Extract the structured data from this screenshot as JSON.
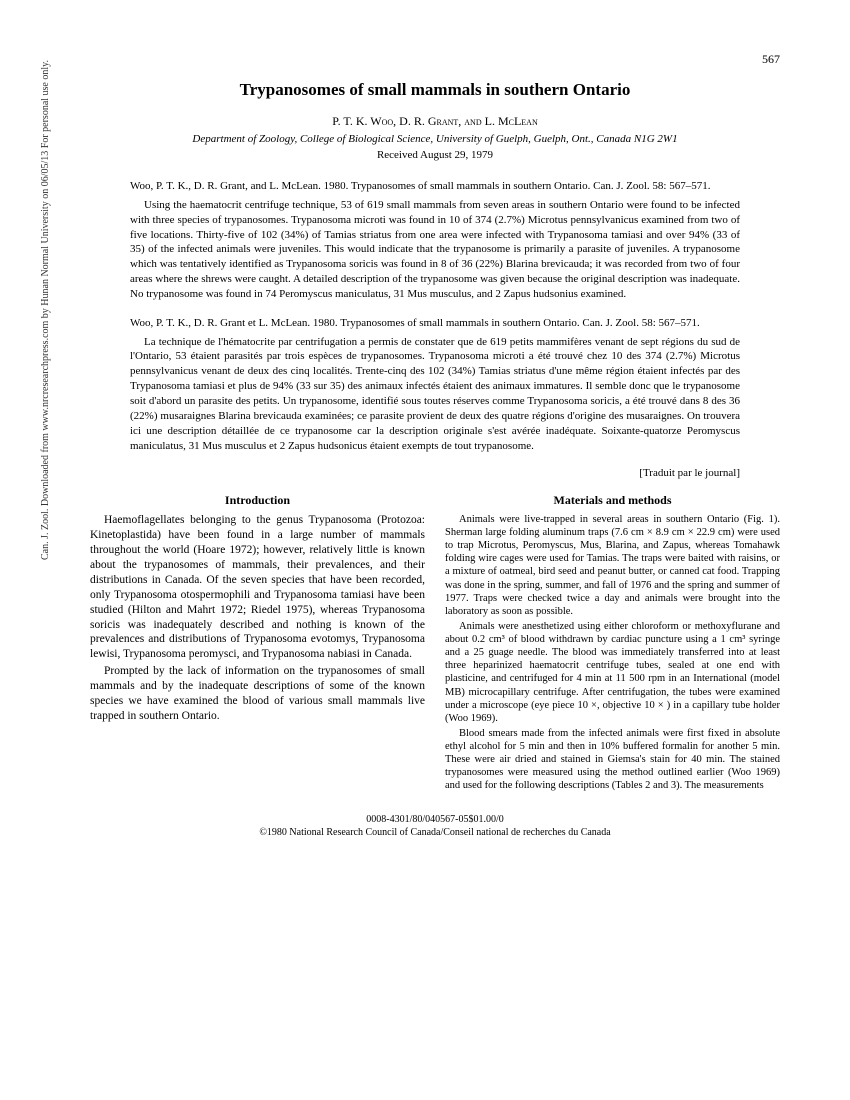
{
  "pageNumber": "567",
  "title": "Trypanosomes of small mammals in southern Ontario",
  "authors": "P. T. K. Woo, D. R. Grant, and L. McLean",
  "affiliation": "Department of Zoology, College of Biological Science, University of Guelph, Guelph, Ont., Canada N1G 2W1",
  "received": "Received August 29, 1979",
  "citationEn": "Woo, P. T. K., D. R. Grant, and L. McLean. 1980. Trypanosomes of small mammals in southern Ontario. Can. J. Zool. 58: 567–571.",
  "abstractEn": "Using the haematocrit centrifuge technique, 53 of 619 small mammals from seven areas in southern Ontario were found to be infected with three species of trypanosomes. Trypanosoma microti was found in 10 of 374 (2.7%) Microtus pennsylvanicus examined from two of five locations. Thirty-five of 102 (34%) of Tamias striatus from one area were infected with Trypanosoma tamiasi and over 94% (33 of 35) of the infected animals were juveniles. This would indicate that the trypanosome is primarily a parasite of juveniles. A trypanosome which was tentatively identified as Trypanosoma soricis was found in 8 of 36 (22%) Blarina brevicauda; it was recorded from two of four areas where the shrews were caught. A detailed description of the trypanosome was given because the original description was inadequate. No trypanosome was found in 74 Peromyscus maniculatus, 31 Mus musculus, and 2 Zapus hudsonius examined.",
  "citationFr": "Woo, P. T. K., D. R. Grant et L. McLean. 1980. Trypanosomes of small mammals in southern Ontario. Can. J. Zool. 58: 567–571.",
  "abstractFr": "La technique de l'hématocrite par centrifugation a permis de constater que de 619 petits mammifères venant de sept régions du sud de l'Ontario, 53 étaient parasités par trois espèces de trypanosomes. Trypanosoma microti a été trouvé chez 10 des 374 (2.7%) Microtus pennsylvanicus venant de deux des cinq localités. Trente-cinq des 102 (34%) Tamias striatus d'une même région étaient infectés par des Trypanosoma tamiasi et plus de 94% (33 sur 35) des animaux infectés étaient des animaux immatures. Il semble donc que le trypanosome soit d'abord un parasite des petits. Un trypanosome, identifié sous toutes réserves comme Trypanosoma soricis, a été trouvé dans 8 des 36 (22%) musaraignes Blarina brevicauda examinées; ce parasite provient de deux des quatre régions d'origine des musaraignes. On trouvera ici une description détaillée de ce trypanosome car la description originale s'est avérée inadéquate. Soixante-quatorze Peromyscus maniculatus, 31 Mus musculus et 2 Zapus hudsonicus étaient exempts de tout trypanosome.",
  "traduit": "[Traduit par le journal]",
  "introHead": "Introduction",
  "introP1": "Haemoflagellates belonging to the genus Trypanosoma (Protozoa: Kinetoplastida) have been found in a large number of mammals throughout the world (Hoare 1972); however, relatively little is known about the trypanosomes of mammals, their prevalences, and their distributions in Canada. Of the seven species that have been recorded, only Trypanosoma otospermophili and Trypanosoma tamiasi have been studied (Hilton and Mahrt 1972; Riedel 1975), whereas Trypanosoma soricis was inadequately described and nothing is known of the prevalences and distributions of Trypanosoma evotomys, Trypanosoma lewisi, Trypanosoma peromysci, and Trypanosoma nabiasi in Canada.",
  "introP2": "Prompted by the lack of information on the trypanosomes of small mammals and by the inadequate descriptions of some of the known species we have examined the blood of various small mammals live trapped in southern Ontario.",
  "methodsHead": "Materials and methods",
  "methodsP1": "Animals were live-trapped in several areas in southern Ontario (Fig. 1). Sherman large folding aluminum traps (7.6 cm × 8.9 cm × 22.9 cm) were used to trap Microtus, Peromyscus, Mus, Blarina, and Zapus, whereas Tomahawk folding wire cages were used for Tamias. The traps were baited with raisins, or a mixture of oatmeal, bird seed and peanut butter, or canned cat food. Trapping was done in the spring, summer, and fall of 1976 and the spring and summer of 1977. Traps were checked twice a day and animals were brought into the laboratory as soon as possible.",
  "methodsP2": "Animals were anesthetized using either chloroform or methoxyflurane and about 0.2 cm³ of blood withdrawn by cardiac puncture using a 1 cm³ syringe and a 25 guage needle. The blood was immediately transferred into at least three heparinized haematocrit centrifuge tubes, sealed at one end with plasticine, and centrifuged for 4 min at 11 500 rpm in an International (model MB) microcapillary centrifuge. After centrifugation, the tubes were examined under a microscope (eye piece 10 ×, objective 10 × ) in a capillary tube holder (Woo 1969).",
  "methodsP3": "Blood smears made from the infected animals were first fixed in absolute ethyl alcohol for 5 min and then in 10% buffered formalin for another 5 min. These were air dried and stained in Giemsa's stain for 40 min. The stained trypanosomes were measured using the method outlined earlier (Woo 1969) and used for the following descriptions (Tables 2 and 3). The measurements",
  "footer1": "0008-4301/80/040567-05$01.00/0",
  "footer2": "©1980 National Research Council of Canada/Conseil national de recherches du Canada",
  "sidebar": "Can. J. Zool. Downloaded from www.nrcresearchpress.com by Hunan Normal University on 06/05/13  For personal use only."
}
